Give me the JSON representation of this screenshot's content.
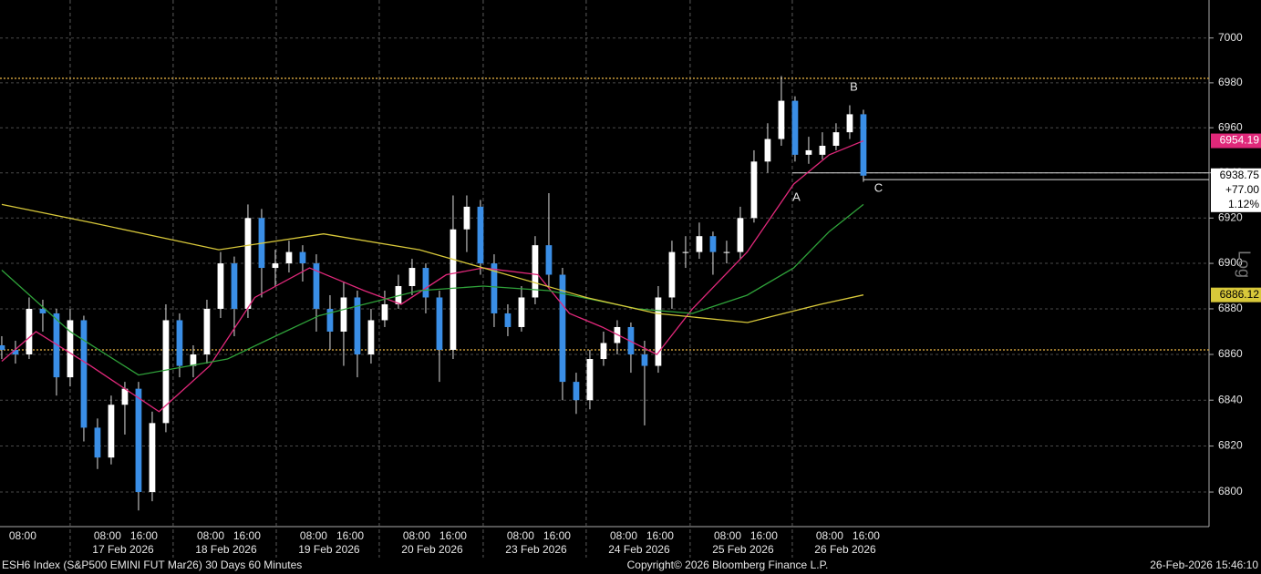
{
  "chart_data": {
    "type": "candlestick",
    "footer_left": "ESH6 Index (S&P500 EMINI FUT  Mar26) 30 Days 60 Minutes",
    "footer_center": "Copyright© 2026 Bloomberg Finance L.P.",
    "footer_right": "26-Feb-2026 15:46:10",
    "scale_label": "Log",
    "log_scale": true,
    "grid": true,
    "up_color": "#ffffff",
    "down_color": "#3a8ee6",
    "xlim": [
      -0.13,
      88.27
    ],
    "ylim": [
      6785,
      7017
    ],
    "yticks": [
      6800,
      6820,
      6840,
      6860,
      6880,
      6900,
      6920,
      6940,
      6960,
      6980,
      7000
    ],
    "xgrid": [
      5.0,
      12.53,
      20.07,
      27.6,
      35.2,
      42.73,
      50.33,
      57.8
    ],
    "xticks": [
      {
        "value": 1.53,
        "label": "08:00"
      },
      {
        "value": 7.73,
        "label": "08:00"
      },
      {
        "value": 10.4,
        "label": "16:00"
      },
      {
        "value": 15.27,
        "label": "08:00"
      },
      {
        "value": 17.93,
        "label": "16:00"
      },
      {
        "value": 22.8,
        "label": "08:00"
      },
      {
        "value": 25.47,
        "label": "16:00"
      },
      {
        "value": 30.33,
        "label": "08:00"
      },
      {
        "value": 33.0,
        "label": "16:00"
      },
      {
        "value": 37.93,
        "label": "08:00"
      },
      {
        "value": 40.6,
        "label": "16:00"
      },
      {
        "value": 45.47,
        "label": "08:00"
      },
      {
        "value": 48.13,
        "label": "16:00"
      },
      {
        "value": 53.07,
        "label": "08:00"
      },
      {
        "value": 55.73,
        "label": "16:00"
      },
      {
        "value": 60.53,
        "label": "08:00"
      },
      {
        "value": 63.2,
        "label": "16:00"
      }
    ],
    "dates": [
      {
        "value": 8.87,
        "label": "17 Feb 2026"
      },
      {
        "value": 16.4,
        "label": "18 Feb 2026"
      },
      {
        "value": 23.93,
        "label": "19 Feb 2026"
      },
      {
        "value": 31.47,
        "label": "20 Feb 2026"
      },
      {
        "value": 39.07,
        "label": "23 Feb 2026"
      },
      {
        "value": 46.6,
        "label": "24 Feb 2026"
      },
      {
        "value": 54.2,
        "label": "25 Feb 2026"
      },
      {
        "value": 61.67,
        "label": "26 Feb 2026"
      }
    ],
    "x": [
      0,
      1,
      2,
      3,
      4,
      5,
      6,
      7,
      8,
      9,
      10,
      11,
      12,
      13,
      14,
      15,
      16,
      17,
      18,
      19,
      20,
      21,
      22,
      23,
      24,
      25,
      26,
      27,
      28,
      29,
      30,
      31,
      32,
      33,
      34,
      35,
      36,
      37,
      38,
      39,
      40,
      41,
      42,
      43,
      44,
      45,
      46,
      47,
      48,
      49,
      50,
      51,
      52,
      53,
      54,
      55,
      56,
      57,
      58,
      59,
      60,
      61,
      62,
      63
    ],
    "candles": [
      [
        6864,
        6868,
        6858,
        6862
      ],
      [
        6862,
        6866,
        6856,
        6860
      ],
      [
        6860,
        6885,
        6858,
        6880
      ],
      [
        6880,
        6884,
        6870,
        6878
      ],
      [
        6878,
        6880,
        6842,
        6850
      ],
      [
        6850,
        6880,
        6846,
        6875
      ],
      [
        6875,
        6877,
        6822,
        6828
      ],
      [
        6828,
        6832,
        6810,
        6815
      ],
      [
        6815,
        6842,
        6812,
        6838
      ],
      [
        6838,
        6848,
        6825,
        6845
      ],
      [
        6845,
        6848,
        6792,
        6800
      ],
      [
        6800,
        6835,
        6796,
        6830
      ],
      [
        6830,
        6882,
        6826,
        6875
      ],
      [
        6875,
        6878,
        6850,
        6855
      ],
      [
        6855,
        6864,
        6850,
        6860
      ],
      [
        6860,
        6884,
        6856,
        6880
      ],
      [
        6880,
        6905,
        6876,
        6900
      ],
      [
        6900,
        6903,
        6868,
        6880
      ],
      [
        6880,
        6926,
        6876,
        6920
      ],
      [
        6920,
        6924,
        6885,
        6898
      ],
      [
        6898,
        6906,
        6890,
        6900
      ],
      [
        6900,
        6910,
        6896,
        6905
      ],
      [
        6905,
        6908,
        6892,
        6900
      ],
      [
        6900,
        6904,
        6870,
        6880
      ],
      [
        6880,
        6886,
        6862,
        6870
      ],
      [
        6870,
        6892,
        6855,
        6885
      ],
      [
        6885,
        6888,
        6850,
        6860
      ],
      [
        6860,
        6880,
        6856,
        6875
      ],
      [
        6875,
        6888,
        6872,
        6882
      ],
      [
        6882,
        6895,
        6880,
        6890
      ],
      [
        6890,
        6902,
        6886,
        6898
      ],
      [
        6898,
        6900,
        6878,
        6885
      ],
      [
        6885,
        6888,
        6848,
        6862
      ],
      [
        6862,
        6930,
        6858,
        6915
      ],
      [
        6915,
        6930,
        6905,
        6925
      ],
      [
        6925,
        6928,
        6895,
        6900
      ],
      [
        6900,
        6904,
        6872,
        6878
      ],
      [
        6878,
        6882,
        6868,
        6872
      ],
      [
        6872,
        6890,
        6870,
        6885
      ],
      [
        6885,
        6912,
        6882,
        6908
      ],
      [
        6908,
        6931,
        6890,
        6895
      ],
      [
        6895,
        6898,
        6840,
        6848
      ],
      [
        6848,
        6852,
        6834,
        6840
      ],
      [
        6840,
        6862,
        6836,
        6858
      ],
      [
        6858,
        6870,
        6855,
        6865
      ],
      [
        6865,
        6875,
        6860,
        6872
      ],
      [
        6872,
        6874,
        6852,
        6860
      ],
      [
        6860,
        6866,
        6829,
        6855
      ],
      [
        6855,
        6890,
        6852,
        6885
      ],
      [
        6885,
        6910,
        6880,
        6905
      ],
      [
        6905,
        6912,
        6898,
        6905
      ],
      [
        6905,
        6918,
        6902,
        6912
      ],
      [
        6912,
        6914,
        6895,
        6905
      ],
      [
        6905,
        6910,
        6900,
        6905
      ],
      [
        6905,
        6925,
        6902,
        6920
      ],
      [
        6920,
        6950,
        6918,
        6945
      ],
      [
        6945,
        6962,
        6940,
        6955
      ],
      [
        6955,
        6983,
        6952,
        6972
      ],
      [
        6972,
        6974,
        6945,
        6948
      ],
      [
        6948,
        6956,
        6944,
        6950
      ],
      [
        6948,
        6958,
        6946,
        6952
      ],
      [
        6952,
        6962,
        6950,
        6958
      ],
      [
        6958,
        6970,
        6955,
        6966
      ],
      [
        6966,
        6968,
        6936,
        6938.75
      ]
    ],
    "series": [
      {
        "color": "#e0287a",
        "x": [
          0,
          2.5,
          6.5,
          11.5,
          15.2,
          18.5,
          22.5,
          26.5,
          29.2,
          32.5,
          35.2,
          39.2,
          41.5,
          43.9,
          47.9,
          50.5,
          54.5,
          57.9,
          60.5,
          63
        ],
        "values": [
          6857,
          6870,
          6855,
          6835,
          6855,
          6885,
          6898,
          6888,
          6882,
          6895,
          6898,
          6895,
          6878,
          6872,
          6860,
          6880,
          6905,
          6935,
          6948,
          6954.19
        ]
      },
      {
        "color": "#2fa23a",
        "x": [
          0,
          5,
          10,
          16.5,
          20,
          23.2,
          26.5,
          30.5,
          35.2,
          40,
          46.5,
          50.5,
          54.5,
          57.9,
          60.5,
          63
        ],
        "values": [
          6897,
          6870,
          6851,
          6858,
          6868,
          6877,
          6882,
          6888,
          6890,
          6888,
          6880,
          6878,
          6886,
          6898,
          6914,
          6926
        ]
      },
      {
        "color": "#d8c83a",
        "x": [
          0,
          6.53,
          15.87,
          23.53,
          30.53,
          35.2,
          42.73,
          47.87,
          54.53,
          59.87,
          63
        ],
        "values": [
          6926,
          6918,
          6906,
          6913,
          6906,
          6898,
          6885,
          6878,
          6874,
          6882,
          6886.12
        ]
      }
    ],
    "reference_lines": [
      6982,
      6862
    ],
    "reference_color": "#c89a3a",
    "levels": [
      {
        "value": 6940,
        "x": 57.8
      },
      {
        "value": 6937,
        "x": 63
      }
    ],
    "annotations": [
      {
        "text": "A",
        "x": 58.1,
        "y": 6929
      },
      {
        "text": "B",
        "x": 62.3,
        "y": 6978
      },
      {
        "text": "C",
        "x": 64.1,
        "y": 6933
      }
    ],
    "change": {
      "value": 77,
      "label": "+77.00"
    },
    "change_pct": {
      "value": 1.12,
      "label": "1.12%"
    }
  }
}
